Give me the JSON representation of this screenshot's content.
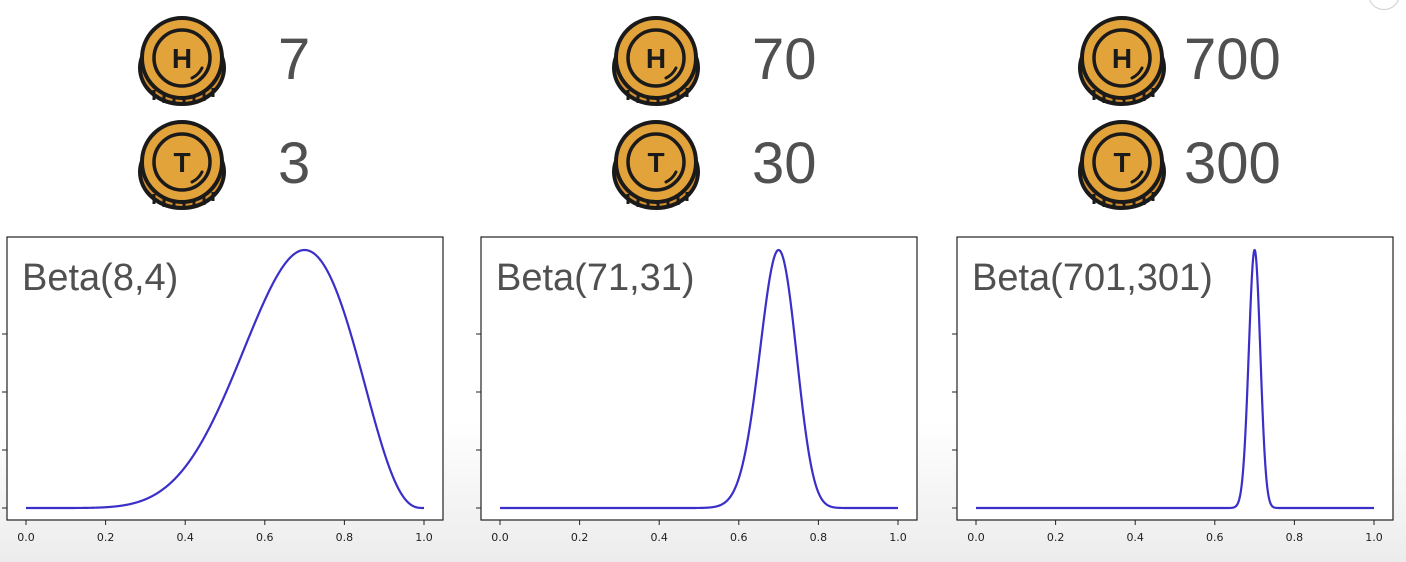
{
  "panels": [
    {
      "heads": {
        "letter": "H",
        "count": "7"
      },
      "tails": {
        "letter": "T",
        "count": "3"
      }
    },
    {
      "heads": {
        "letter": "H",
        "count": "70"
      },
      "tails": {
        "letter": "T",
        "count": "30"
      }
    },
    {
      "heads": {
        "letter": "H",
        "count": "700"
      },
      "tails": {
        "letter": "T",
        "count": "300"
      }
    }
  ],
  "colors": {
    "curve": "#3a2fc8",
    "coin_fill": "#e3a33b",
    "coin_outline": "#1a1a1a",
    "text": "#505050"
  },
  "icons": {
    "heads": "heads-coin-icon",
    "tails": "tails-coin-icon"
  },
  "chart_data": [
    {
      "type": "line",
      "title": "Beta(8,4)",
      "alpha": 8,
      "beta": 4,
      "xlim": [
        0.0,
        1.0
      ],
      "xticks": [
        "0.0",
        "0.2",
        "0.4",
        "0.6",
        "0.8",
        "1.0"
      ],
      "series": [
        {
          "distribution": "beta",
          "alpha": 8,
          "beta": 4
        }
      ],
      "grid": false
    },
    {
      "type": "line",
      "title": "Beta(71,31)",
      "alpha": 71,
      "beta": 31,
      "xlim": [
        0.0,
        1.0
      ],
      "xticks": [
        "0.0",
        "0.2",
        "0.4",
        "0.6",
        "0.8",
        "1.0"
      ],
      "series": [
        {
          "distribution": "beta",
          "alpha": 71,
          "beta": 31
        }
      ],
      "grid": false
    },
    {
      "type": "line",
      "title": "Beta(701,301)",
      "alpha": 701,
      "beta": 301,
      "xlim": [
        0.0,
        1.0
      ],
      "xticks": [
        "0.0",
        "0.2",
        "0.4",
        "0.6",
        "0.8",
        "1.0"
      ],
      "series": [
        {
          "distribution": "beta",
          "alpha": 701,
          "beta": 301
        }
      ],
      "grid": false
    }
  ]
}
